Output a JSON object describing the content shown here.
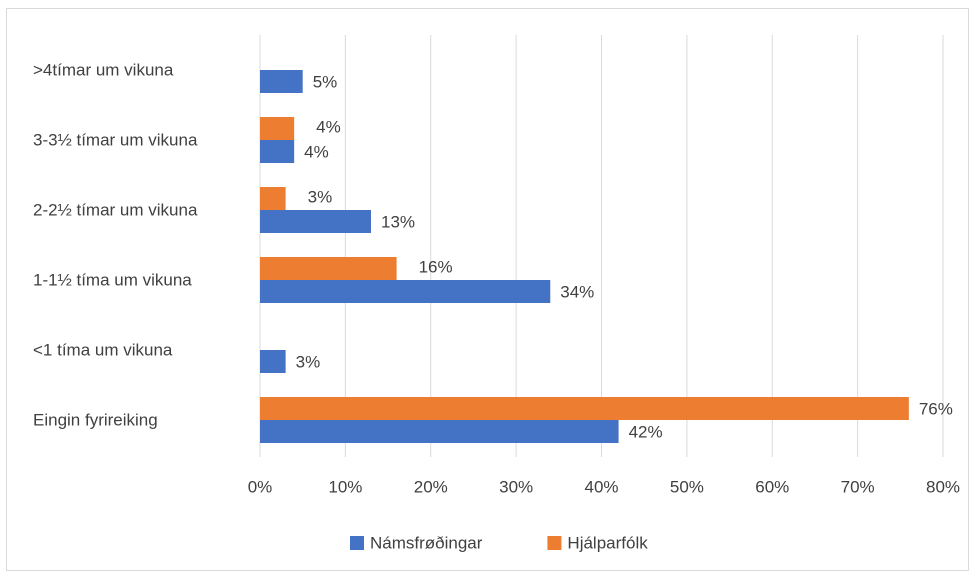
{
  "chart_data": {
    "type": "hbar",
    "categories": [
      ">4tímar um vikuna",
      "3-3½ tímar um vikuna",
      "2-2½ tímar um vikuna",
      "1-1½ tíma um vikuna",
      "<1 tíma um vikuna",
      "Eingin fyrireiking"
    ],
    "series": [
      {
        "name": "Námsfrøðingar",
        "color": "#4472c4",
        "values": [
          5,
          4,
          13,
          34,
          3,
          42
        ],
        "value_labels": [
          "5%",
          "4%",
          "13%",
          "34%",
          "3%",
          "42%"
        ]
      },
      {
        "name": "Hjálparfólk",
        "color": "#ed7d31",
        "values": [
          null,
          4,
          3,
          16,
          null,
          76
        ],
        "value_labels": [
          null,
          "4%",
          "3%",
          "16%",
          null,
          "76%"
        ]
      }
    ],
    "xlim": [
      0,
      80
    ],
    "xticks": [
      {
        "value": 0,
        "label": "0%"
      },
      {
        "value": 10,
        "label": "10%"
      },
      {
        "value": 20,
        "label": "20%"
      },
      {
        "value": 30,
        "label": "30%"
      },
      {
        "value": 40,
        "label": "40%"
      },
      {
        "value": 50,
        "label": "50%"
      },
      {
        "value": 60,
        "label": "60%"
      },
      {
        "value": 70,
        "label": "70%"
      },
      {
        "value": 80,
        "label": "80%"
      }
    ],
    "grid": true,
    "legend": "bottom"
  }
}
